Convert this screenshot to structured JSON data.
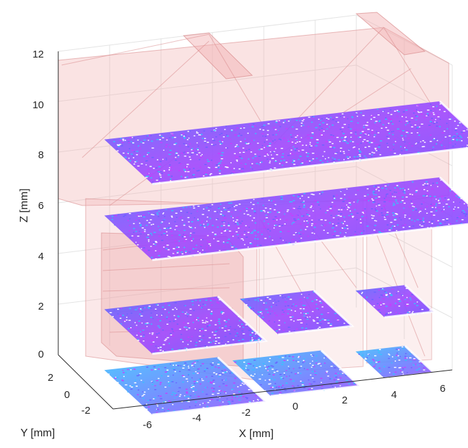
{
  "chart_data": {
    "type": "scatter3d",
    "title": "",
    "xlabel": "X [mm]",
    "ylabel": "Y [mm]",
    "zlabel": "Z [mm]",
    "xlim": [
      -7,
      7
    ],
    "ylim": [
      -3,
      3
    ],
    "zlim": [
      0,
      12
    ],
    "xticks": [
      "-6",
      "-4",
      "-2",
      "0",
      "2",
      "4",
      "6"
    ],
    "yticks": [
      "-2",
      "0",
      "2"
    ],
    "zticks": [
      "0",
      "2",
      "4",
      "6",
      "8",
      "10",
      "12"
    ],
    "grid": true,
    "series": [
      {
        "level": "z=0",
        "x_range": [
          -6.8,
          -2.2
        ],
        "y_range": [
          -2.5,
          2.5
        ],
        "z": 0.3
      },
      {
        "level": "z=0",
        "x_range": [
          -1.8,
          1.8
        ],
        "y_range": [
          -2.0,
          2.0
        ],
        "z": 0.3
      },
      {
        "level": "z=0",
        "x_range": [
          3.0,
          5.0
        ],
        "y_range": [
          -1.5,
          1.5
        ],
        "z": 0.3
      },
      {
        "level": "z=2",
        "x_range": [
          -6.8,
          -2.2
        ],
        "y_range": [
          -2.5,
          2.5
        ],
        "z": 2.7
      },
      {
        "level": "z=2",
        "x_range": [
          -1.5,
          1.5
        ],
        "y_range": [
          -2.0,
          2.0
        ],
        "z": 2.7
      },
      {
        "level": "z=2",
        "x_range": [
          3.0,
          5.0
        ],
        "y_range": [
          -1.5,
          1.5
        ],
        "z": 2.7
      },
      {
        "level": "z=6",
        "x_range": [
          -6.8,
          6.8
        ],
        "y_range": [
          -2.5,
          2.5
        ],
        "z": 6.4
      },
      {
        "level": "z=9",
        "x_range": [
          -6.8,
          6.8
        ],
        "y_range": [
          -2.5,
          2.5
        ],
        "z": 9.4
      }
    ],
    "colors": {
      "points_cool": "#33c3ff",
      "points_mid": "#6a62ff",
      "points_hot": "#c93cff",
      "mesh_fill": "#f2aeb0",
      "mesh_edge": "#d88a8c"
    }
  }
}
